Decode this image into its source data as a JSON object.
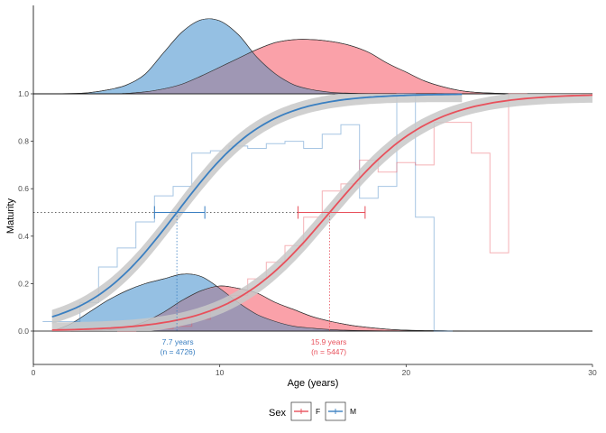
{
  "chart_data": {
    "type": "line",
    "xlabel": "Age (years)",
    "ylabel": "Maturity",
    "xlim": [
      0,
      30
    ],
    "ylim": [
      -0.15,
      1.0
    ],
    "x_ticks": [
      0,
      10,
      20,
      30
    ],
    "x_tick_labels": [
      "0",
      "10",
      "20",
      "30"
    ],
    "y_ticks": [
      0.0,
      0.2,
      0.4,
      0.6,
      0.8,
      1.0
    ],
    "y_tick_labels": [
      "0.0",
      "0.2",
      "0.4",
      "0.6",
      "0.8",
      "1.0"
    ],
    "grid": false,
    "legend": {
      "title": "Sex",
      "position": "bottom",
      "items": [
        {
          "label": "F",
          "color": "#e8505b"
        },
        {
          "label": "M",
          "color": "#3a7fc1"
        }
      ]
    },
    "colors": {
      "F": "#e8505b",
      "M": "#3a7fc1",
      "F_fill": "#f9909a",
      "M_fill": "#8ab9e0",
      "overlap_fill": "#9b97b4",
      "ribbon": "#c8c8c8"
    },
    "series": [
      {
        "name": "M",
        "logistic": {
          "a50": 7.7,
          "k": 0.41,
          "x_range": [
            1,
            23
          ]
        },
        "a50_label_lines": [
          "7.7 years",
          "(n = 4726)"
        ],
        "a50_ci": [
          6.5,
          9.2
        ],
        "observed_step": {
          "x": [
            1,
            2,
            3,
            4,
            5,
            6,
            7,
            8,
            9,
            10,
            11,
            12,
            13,
            14,
            15,
            16,
            17,
            18,
            19,
            20,
            21,
            22
          ],
          "y": [
            0.04,
            0.04,
            0.12,
            0.27,
            0.35,
            0.46,
            0.57,
            0.61,
            0.75,
            0.76,
            0.78,
            0.77,
            0.79,
            0.8,
            0.77,
            0.83,
            0.87,
            0.56,
            0.61,
            1.0,
            0.48,
            0.0
          ]
        },
        "age_density_bottom": {
          "x": [
            1,
            2,
            3,
            4,
            5,
            6,
            7,
            8,
            9,
            10,
            11,
            12,
            13,
            14,
            15,
            16,
            17,
            18,
            19,
            20,
            22
          ],
          "y": [
            0.0,
            0.03,
            0.08,
            0.13,
            0.17,
            0.2,
            0.22,
            0.24,
            0.23,
            0.18,
            0.12,
            0.07,
            0.04,
            0.02,
            0.012,
            0.006,
            0.003,
            0.0015,
            0.0007,
            0.0003,
            0.0
          ]
        },
        "age_density_top": {
          "x": [
            0,
            2,
            3,
            4,
            5,
            6,
            7,
            8,
            9,
            10,
            11,
            12,
            13,
            14,
            15,
            16,
            17,
            18,
            20,
            25,
            30
          ],
          "y": [
            0.0,
            0.003,
            0.012,
            0.04,
            0.09,
            0.2,
            0.42,
            0.63,
            0.75,
            0.74,
            0.6,
            0.37,
            0.2,
            0.09,
            0.04,
            0.015,
            0.006,
            0.002,
            0.0005,
            0.0,
            0.0
          ]
        }
      },
      {
        "name": "F",
        "logistic": {
          "a50": 15.9,
          "k": 0.37,
          "x_range": [
            1,
            30
          ]
        },
        "a50_label_lines": [
          "15.9 years",
          "(n = 5447)"
        ],
        "a50_ci": [
          14.2,
          17.8
        ],
        "observed_step": {
          "x": [
            5,
            6,
            7,
            8,
            9,
            10,
            11,
            12,
            13,
            14,
            15,
            16,
            17,
            18,
            19,
            20,
            21,
            22,
            23,
            24,
            25,
            26
          ],
          "y": [
            0.0,
            0.01,
            0.01,
            0.02,
            0.05,
            0.09,
            0.15,
            0.22,
            0.29,
            0.36,
            0.48,
            0.59,
            0.62,
            0.72,
            0.67,
            0.71,
            0.7,
            0.88,
            0.88,
            0.75,
            0.33,
            1.0
          ]
        },
        "age_density_bottom": {
          "x": [
            2,
            4,
            5,
            6,
            7,
            8,
            9,
            10,
            11,
            12,
            13,
            14,
            15,
            16,
            17,
            18,
            19,
            20,
            21,
            22,
            24,
            30
          ],
          "y": [
            0.0,
            0.005,
            0.015,
            0.04,
            0.08,
            0.13,
            0.17,
            0.19,
            0.18,
            0.16,
            0.12,
            0.09,
            0.06,
            0.04,
            0.025,
            0.015,
            0.008,
            0.004,
            0.002,
            0.001,
            0.0,
            0.0
          ]
        },
        "age_density_top": {
          "x": [
            0,
            4,
            5,
            6,
            7,
            8,
            9,
            10,
            11,
            12,
            13,
            14,
            15,
            16,
            17,
            18,
            19,
            20,
            21,
            22,
            23,
            24,
            26,
            30
          ],
          "y": [
            0.0,
            0.0,
            0.005,
            0.02,
            0.05,
            0.1,
            0.18,
            0.27,
            0.36,
            0.45,
            0.52,
            0.55,
            0.55,
            0.53,
            0.49,
            0.42,
            0.31,
            0.22,
            0.13,
            0.07,
            0.03,
            0.012,
            0.0,
            0.0
          ]
        }
      }
    ]
  }
}
